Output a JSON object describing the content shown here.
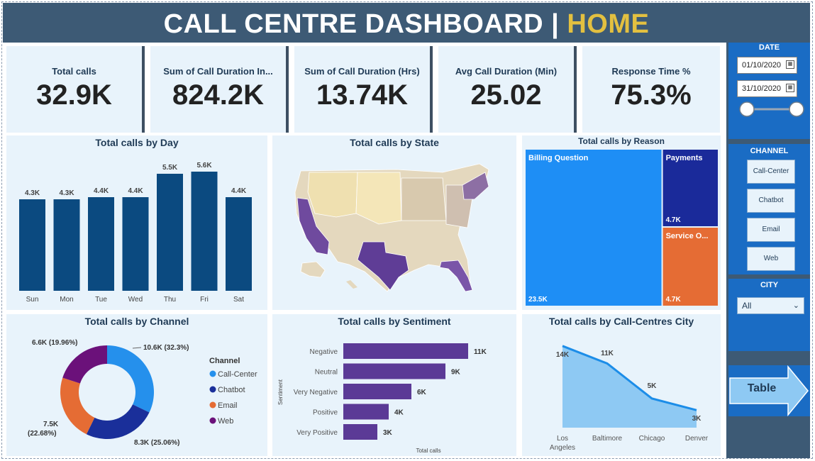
{
  "header": {
    "title": "CALL CENTRE DASHBOARD |",
    "highlight": "HOME"
  },
  "kpis": [
    {
      "label": "Total calls",
      "value": "32.9K"
    },
    {
      "label": "Sum of Call Duration In...",
      "value": "824.2K"
    },
    {
      "label": "Sum of Call Duration (Hrs)",
      "value": "13.74K"
    },
    {
      "label": "Avg Call Duration (Min)",
      "value": "25.02"
    },
    {
      "label": "Response Time %",
      "value": "75.3%"
    }
  ],
  "panels": {
    "day": {
      "title": "Total calls by Day"
    },
    "state": {
      "title": "Total calls by State"
    },
    "reason": {
      "title": "Total calls by Reason"
    },
    "channel": {
      "title": "Total calls by Channel",
      "legend_title": "Channel"
    },
    "sentiment": {
      "title": "Total calls by Sentiment",
      "ylabel": "Sentiment",
      "xlabel": "Total calls"
    },
    "city": {
      "title": "Total calls by Call-Centres City"
    }
  },
  "filters": {
    "date": {
      "title": "DATE",
      "start": "01/10/2020",
      "end": "31/10/2020"
    },
    "channel": {
      "title": "CHANNEL",
      "options": [
        "Call-Center",
        "Chatbot",
        "Email",
        "Web"
      ]
    },
    "city": {
      "title": "CITY",
      "selected": "All"
    }
  },
  "nav": {
    "table_button": "Table"
  },
  "colors": {
    "header_bg": "#3d5a75",
    "highlight": "#e3c040",
    "bar": "#0b4a80",
    "call_center": "#2590ec",
    "chatbot": "#1a2f9a",
    "email": "#e56c34",
    "web": "#6b117a",
    "sentiment_bar": "#5b3a96",
    "city_area": "#8ec9f3",
    "city_line": "#1c8de8"
  },
  "chart_data": [
    {
      "type": "bar",
      "title": "Total calls by Day",
      "categories": [
        "Sun",
        "Mon",
        "Tue",
        "Wed",
        "Thu",
        "Fri",
        "Sat"
      ],
      "values": [
        4.3,
        4.3,
        4.4,
        4.4,
        5.5,
        5.6,
        4.4
      ],
      "labels": [
        "4.3K",
        "4.3K",
        "4.4K",
        "4.4K",
        "5.5K",
        "5.6K",
        "4.4K"
      ],
      "unit": "K"
    },
    {
      "type": "treemap",
      "title": "Total calls by Reason",
      "items": [
        {
          "name": "Billing Question",
          "value": 23.5,
          "label": "23.5K",
          "color": "#1e8ef5"
        },
        {
          "name": "Payments",
          "value": 4.7,
          "label": "4.7K",
          "color": "#1a2a9a"
        },
        {
          "name": "Service O...",
          "value": 4.7,
          "label": "4.7K",
          "color": "#e56c34"
        }
      ]
    },
    {
      "type": "pie",
      "title": "Total calls by Channel",
      "slices": [
        {
          "name": "Call-Center",
          "value": 10.6,
          "label": "10.6K (32.3%)"
        },
        {
          "name": "Chatbot",
          "value": 8.3,
          "label": "8.3K (25.06%)"
        },
        {
          "name": "Email",
          "value": 7.5,
          "label": "7.5K",
          "label2": "(22.68%)"
        },
        {
          "name": "Web",
          "value": 6.6,
          "label": "6.6K (19.96%)"
        }
      ]
    },
    {
      "type": "bar",
      "orientation": "horizontal",
      "title": "Total calls by Sentiment",
      "categories": [
        "Negative",
        "Neutral",
        "Very Negative",
        "Positive",
        "Very Positive"
      ],
      "values": [
        11,
        9,
        6,
        4,
        3
      ],
      "labels": [
        "11K",
        "9K",
        "6K",
        "4K",
        "3K"
      ],
      "xlabel": "Total calls",
      "ylabel": "Sentiment"
    },
    {
      "type": "area",
      "title": "Total calls by Call-Centres City",
      "categories": [
        "Los Angeles",
        "Baltimore",
        "Chicago",
        "Denver"
      ],
      "values": [
        14,
        11,
        5,
        3
      ],
      "labels": [
        "14K",
        "11K",
        "5K",
        "3K"
      ]
    }
  ]
}
